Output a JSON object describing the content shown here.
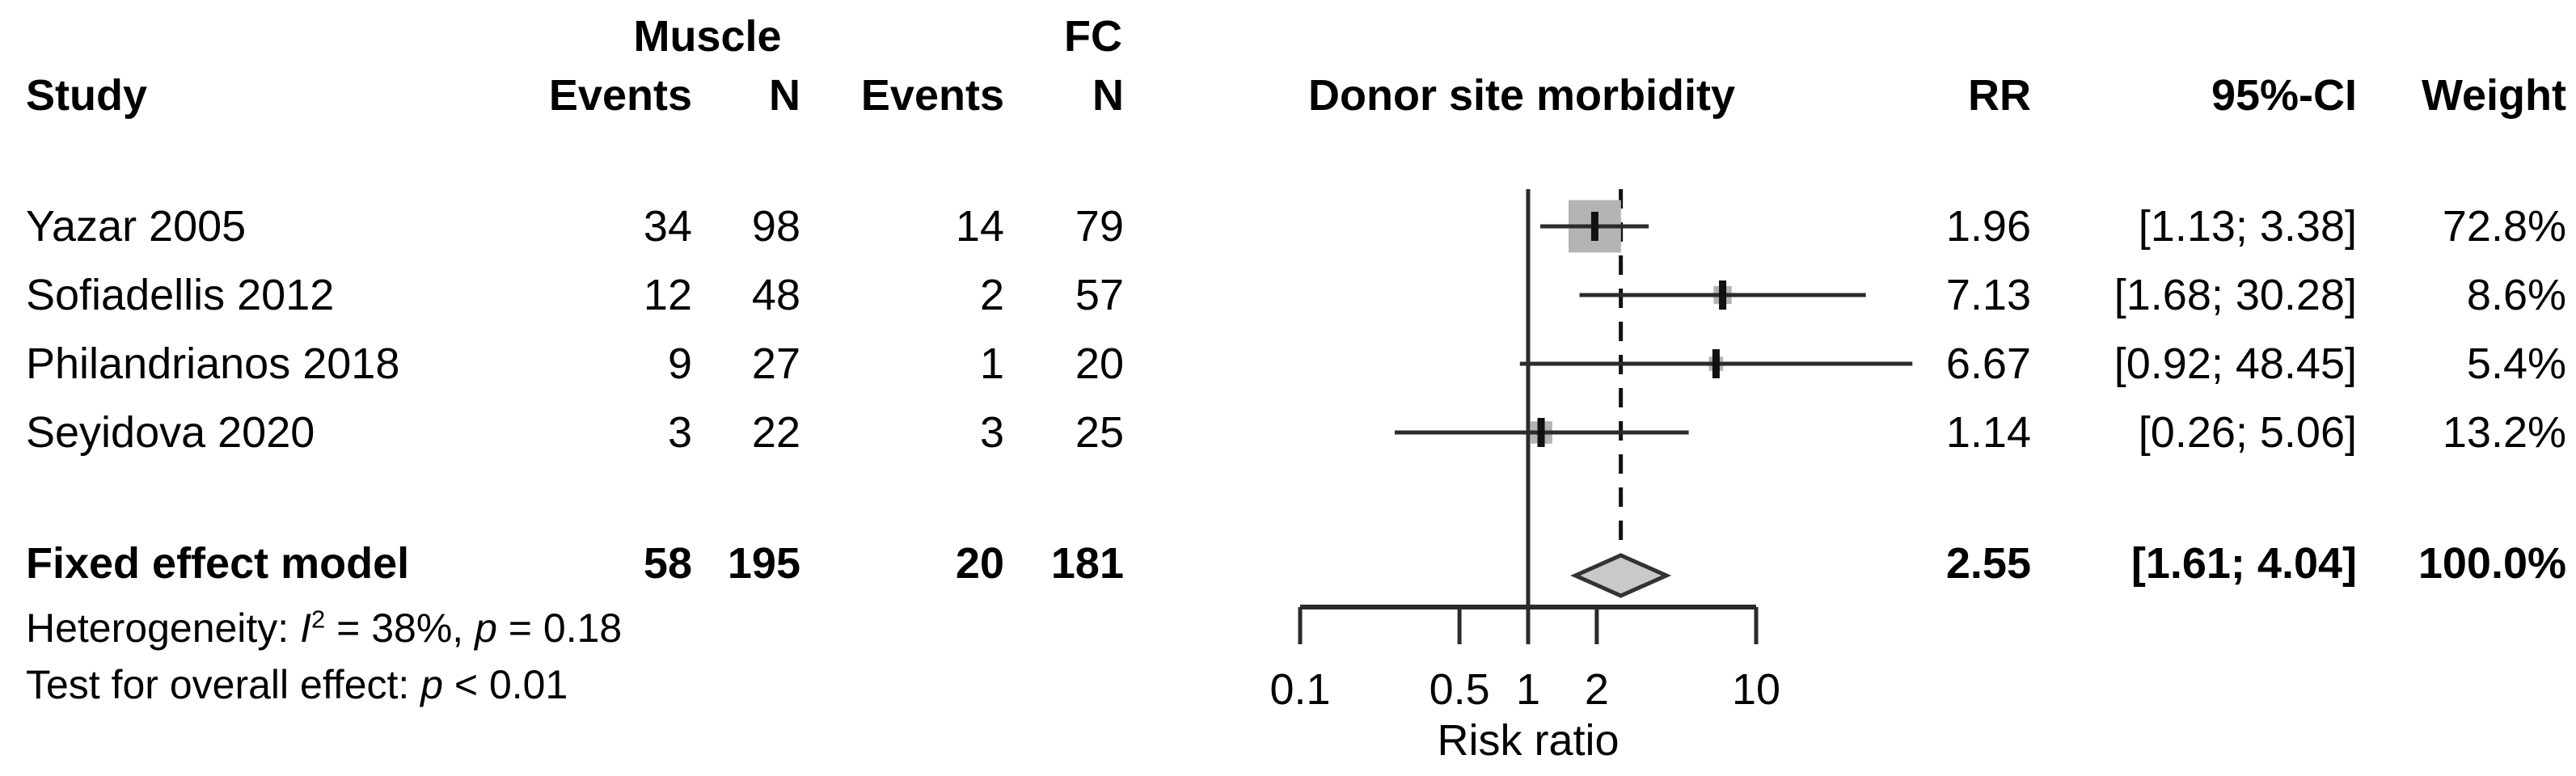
{
  "header": {
    "group_muscle": "Muscle",
    "group_fc": "FC",
    "study": "Study",
    "events_muscle": "Events",
    "n_muscle": "N",
    "events_fc": "Events",
    "n_fc": "N",
    "plot_title": "Donor site morbidity",
    "rr": "RR",
    "ci": "95%-CI",
    "weight": "Weight"
  },
  "rows": [
    {
      "study": "Yazar 2005",
      "muscle_events": "34",
      "muscle_n": "98",
      "fc_events": "14",
      "fc_n": "79",
      "rr": "1.96",
      "ci": "[1.13; 3.38]",
      "weight": "72.8%"
    },
    {
      "study": "Sofiadellis 2012",
      "muscle_events": "12",
      "muscle_n": "48",
      "fc_events": "2",
      "fc_n": "57",
      "rr": "7.13",
      "ci": "[1.68; 30.28]",
      "weight": "8.6%"
    },
    {
      "study": "Philandrianos 2018",
      "muscle_events": "9",
      "muscle_n": "27",
      "fc_events": "1",
      "fc_n": "20",
      "rr": "6.67",
      "ci": "[0.92; 48.45]",
      "weight": "5.4%"
    },
    {
      "study": "Seyidova 2020",
      "muscle_events": "3",
      "muscle_n": "22",
      "fc_events": "3",
      "fc_n": "25",
      "rr": "1.14",
      "ci": "[0.26; 5.06]",
      "weight": "13.2%"
    }
  ],
  "summary_row": {
    "label": "Fixed effect model",
    "muscle_events": "58",
    "muscle_n": "195",
    "fc_events": "20",
    "fc_n": "181",
    "rr": "2.55",
    "ci": "[1.61; 4.04]",
    "weight": "100.0%"
  },
  "footnotes": {
    "het_prefix": "Heterogeneity: ",
    "het_i": "I",
    "het_sup": "2",
    "het_mid": " = 38%, ",
    "het_p": "p",
    "het_tail": " = 0.18",
    "test_prefix": "Test for overall effect: ",
    "test_p": "p",
    "test_tail": " < 0.01"
  },
  "axis": {
    "xlabel": "Risk ratio",
    "tick_labels": [
      "0.1",
      "0.5",
      "1",
      "2",
      "10"
    ]
  },
  "colors": {
    "line": "#2b2b2b",
    "marker_square": "#b4b4b4",
    "point_tick": "#111111",
    "diamond_fill": "#c9c9c9",
    "diamond_stroke": "#333333"
  },
  "chart_data": {
    "type": "forest",
    "effect_measure": "Risk ratio",
    "title": "Donor site morbidity",
    "xlabel": "Risk ratio",
    "x_scale": "log10",
    "x_ticks": [
      0.1,
      0.5,
      1,
      2,
      10
    ],
    "x_range_axis": [
      0.1,
      10
    ],
    "reference_line": 1,
    "summary_dashed_line": 2.55,
    "studies": [
      {
        "name": "Yazar 2005",
        "muscle_events": 34,
        "muscle_n": 98,
        "fc_events": 14,
        "fc_n": 79,
        "rr": 1.96,
        "ci_low": 1.13,
        "ci_high": 3.38,
        "weight_pct": 72.8
      },
      {
        "name": "Sofiadellis 2012",
        "muscle_events": 12,
        "muscle_n": 48,
        "fc_events": 2,
        "fc_n": 57,
        "rr": 7.13,
        "ci_low": 1.68,
        "ci_high": 30.28,
        "weight_pct": 8.6
      },
      {
        "name": "Philandrianos 2018",
        "muscle_events": 9,
        "muscle_n": 27,
        "fc_events": 1,
        "fc_n": 20,
        "rr": 6.67,
        "ci_low": 0.92,
        "ci_high": 48.45,
        "weight_pct": 5.4
      },
      {
        "name": "Seyidova 2020",
        "muscle_events": 3,
        "muscle_n": 22,
        "fc_events": 3,
        "fc_n": 25,
        "rr": 1.14,
        "ci_low": 0.26,
        "ci_high": 5.06,
        "weight_pct": 13.2
      }
    ],
    "summary": {
      "label": "Fixed effect model",
      "muscle_events": 58,
      "muscle_n": 195,
      "fc_events": 20,
      "fc_n": 181,
      "rr": 2.55,
      "ci_low": 1.61,
      "ci_high": 4.04,
      "weight_pct": 100.0
    },
    "heterogeneity": {
      "I2_pct": 38,
      "p": 0.18
    },
    "overall_effect": {
      "p": "< 0.01"
    },
    "legend_position": "none",
    "grid": false
  }
}
